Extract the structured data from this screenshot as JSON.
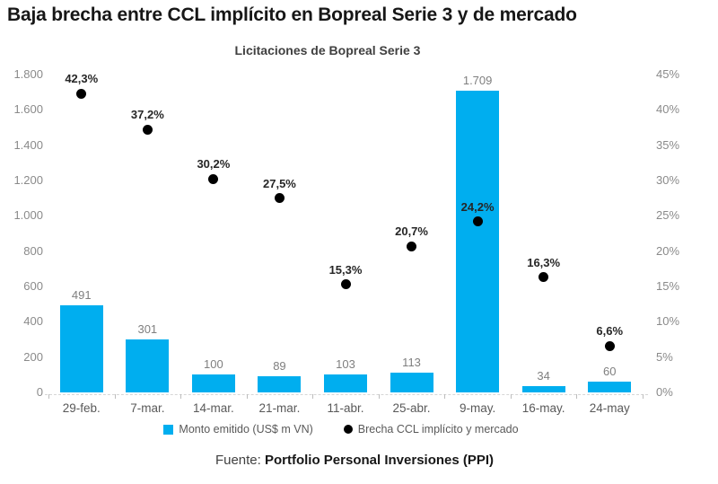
{
  "page": {
    "title": "Baja brecha entre CCL implícito en Bopreal Serie 3 y de mercado",
    "source_prefix": "Fuente: ",
    "source_bold": "Portfolio Personal Inversiones (PPI)"
  },
  "chart_data": {
    "type": "bar",
    "title": "Licitaciones de Bopreal Serie 3",
    "categories": [
      "29-feb.",
      "7-mar.",
      "14-mar.",
      "21-mar.",
      "11-abr.",
      "25-abr.",
      "9-may.",
      "16-may.",
      "24-may"
    ],
    "series": [
      {
        "name": "Monto emitido (US$ m VN)",
        "type": "bar",
        "axis": "left",
        "color": "#00AEEF",
        "values": [
          491,
          301,
          100,
          89,
          103,
          113,
          1709,
          34,
          60
        ],
        "labels": [
          "491",
          "301",
          "100",
          "89",
          "103",
          "113",
          "1.709",
          "34",
          "60"
        ]
      },
      {
        "name": "Brecha CCL implícito y mercado",
        "type": "scatter",
        "axis": "right",
        "color": "#000000",
        "values": [
          42.3,
          37.2,
          30.2,
          27.5,
          15.3,
          20.7,
          24.2,
          16.3,
          6.6
        ],
        "labels": [
          "42,3%",
          "37,2%",
          "30,2%",
          "27,5%",
          "15,3%",
          "20,7%",
          "24,2%",
          "16,3%",
          "6,6%"
        ]
      }
    ],
    "left_axis": {
      "min": 0,
      "max": 1800,
      "ticks": [
        "1.800",
        "1.600",
        "1.400",
        "1.200",
        "1.000",
        "800",
        "600",
        "400",
        "200",
        "0"
      ]
    },
    "right_axis": {
      "min": 0,
      "max": 45,
      "ticks": [
        "45%",
        "40%",
        "35%",
        "30%",
        "25%",
        "20%",
        "15%",
        "10%",
        "5%",
        "0%"
      ]
    },
    "grid": false,
    "legend_position": "bottom"
  }
}
